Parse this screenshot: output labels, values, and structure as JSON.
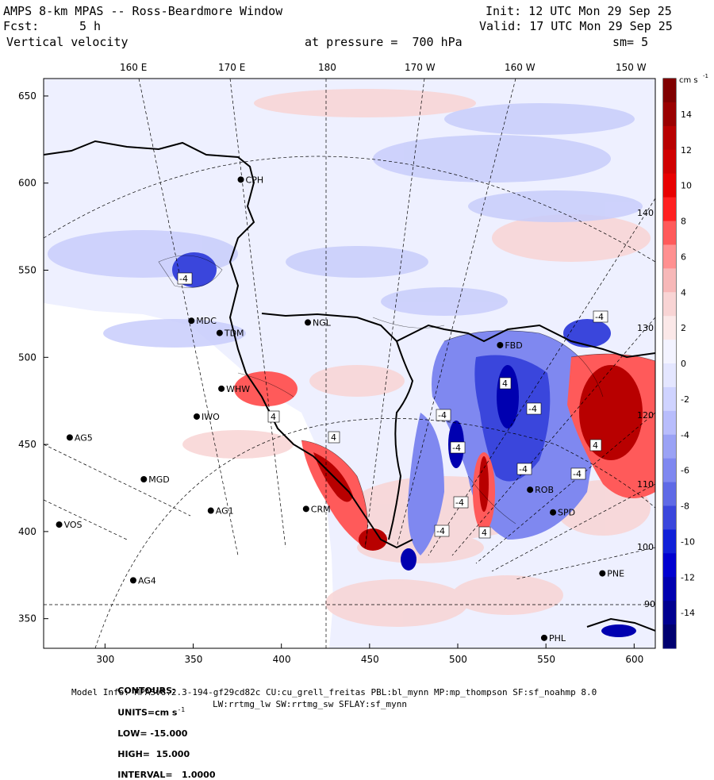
{
  "header": {
    "title": "AMPS 8-km MPAS -- Ross-Beardmore Window",
    "fcst_label": "Fcst:",
    "fcst_value": "5 h",
    "field": "Vertical velocity",
    "init": "Init: 12 UTC Mon 29 Sep 25",
    "valid": "Valid: 17 UTC Mon 29 Sep 25",
    "pressure": "at pressure =  700 hPa",
    "smoothing": "sm= 5"
  },
  "top_longitudes": [
    "160 E",
    "170 E",
    "180",
    "170 W",
    "160 W",
    "150 W"
  ],
  "x_ticks": [
    "300",
    "350",
    "400",
    "450",
    "500",
    "550",
    "600"
  ],
  "y_ticks": [
    "650",
    "600",
    "550",
    "500",
    "450",
    "400",
    "350"
  ],
  "right_grid_labels": [
    "140 W",
    "130 W",
    "120 W",
    "110 W",
    "100 W",
    "90 W"
  ],
  "stations": [
    {
      "name": "CPH",
      "x": 377,
      "y": 602
    },
    {
      "name": "MDC",
      "x": 349,
      "y": 521
    },
    {
      "name": "TDM",
      "x": 365,
      "y": 514
    },
    {
      "name": "NGL",
      "x": 415,
      "y": 520
    },
    {
      "name": "WHW",
      "x": 366,
      "y": 482
    },
    {
      "name": "IWO",
      "x": 352,
      "y": 466
    },
    {
      "name": "AG5",
      "x": 280,
      "y": 454
    },
    {
      "name": "MGD",
      "x": 322,
      "y": 430
    },
    {
      "name": "AG1",
      "x": 360,
      "y": 412
    },
    {
      "name": "CRM",
      "x": 414,
      "y": 413
    },
    {
      "name": "VOS",
      "x": 274,
      "y": 404
    },
    {
      "name": "AG4",
      "x": 316,
      "y": 372
    },
    {
      "name": "PHL",
      "x": 549,
      "y": 339
    },
    {
      "name": "FBD",
      "x": 524,
      "y": 507
    },
    {
      "name": "ROB",
      "x": 541,
      "y": 424
    },
    {
      "name": "SPD",
      "x": 554,
      "y": 411
    },
    {
      "name": "PNE",
      "x": 582,
      "y": 376
    }
  ],
  "colorbar": {
    "units": "cm s",
    "units_exp": "-1",
    "labels": [
      "14",
      "12",
      "10",
      "8",
      "6",
      "4",
      "2",
      "0",
      "-2",
      "-4",
      "-6",
      "-8",
      "-10",
      "-12",
      "-14"
    ],
    "colors": [
      "#800000",
      "#9a0000",
      "#b80000",
      "#d00000",
      "#e80000",
      "#ff2020",
      "#ff5a5a",
      "#ff9090",
      "#f7b8b8",
      "#f8d4d4",
      "#fbe8e8",
      "#f3f3ff",
      "#e4e6ff",
      "#cfd3ff",
      "#b8bdfc",
      "#9aa2f5",
      "#7f88f0",
      "#5f6ae6",
      "#3a46dc",
      "#1020d8",
      "#0000d0",
      "#0000b0",
      "#000090",
      "#000070"
    ]
  },
  "contour_labels": [
    "-4",
    "-4",
    "-4",
    "-4",
    "-4",
    "-4",
    "-4",
    "-4",
    "-4",
    "4",
    "4",
    "4",
    "4",
    "4"
  ],
  "footer": {
    "contours_label": "CONTOURS:",
    "units_label": "UNITS=cm s",
    "units_exp": "-1",
    "low_label": "LOW= -15.000",
    "high_label": "HIGH=  15.000",
    "interval_label": "INTERVAL=   1.0000",
    "model_info": "Model Info: MPASv8.2.3-194-gf29cd82c CU:cu_grell_freitas PBL:bl_mynn MP:mp_thompson SF:sf_noahmp 8.0",
    "model_info2": "LW:rrtmg_lw SW:rrtmg_sw SFLAY:sf_mynn"
  }
}
